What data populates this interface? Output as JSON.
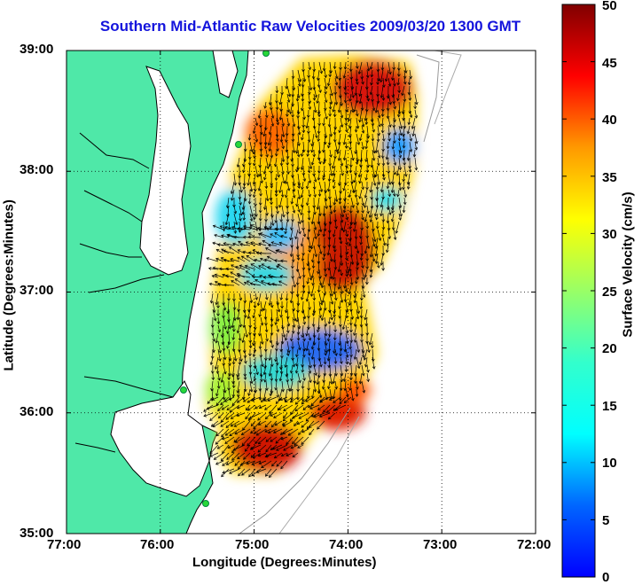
{
  "title": "Southern Mid-Atlantic Raw Velocities 2009/03/20 1300 GMT",
  "map": {
    "xlabel": "Longitude (Degrees:Minutes)",
    "ylabel": "Latitude (Degrees:Minutes)",
    "x_ticks": [
      "77:00",
      "76:00",
      "75:00",
      "74:00",
      "73:00",
      "72:00"
    ],
    "y_ticks": [
      "39:00",
      "38:00",
      "37:00",
      "36:00",
      "35:00"
    ],
    "lon_range": [
      -77,
      -72
    ],
    "lat_range": [
      35,
      39
    ],
    "grid": "dotted",
    "land_color": "#4fe8a8",
    "coast_color": "#000000"
  },
  "colorbar": {
    "label": "Surface Velocity (cm/s)",
    "ticks": [
      "0",
      "5",
      "10",
      "15",
      "20",
      "25",
      "30",
      "35",
      "40",
      "45",
      "50"
    ],
    "range": [
      0,
      50
    ],
    "colormap": "jet"
  }
}
